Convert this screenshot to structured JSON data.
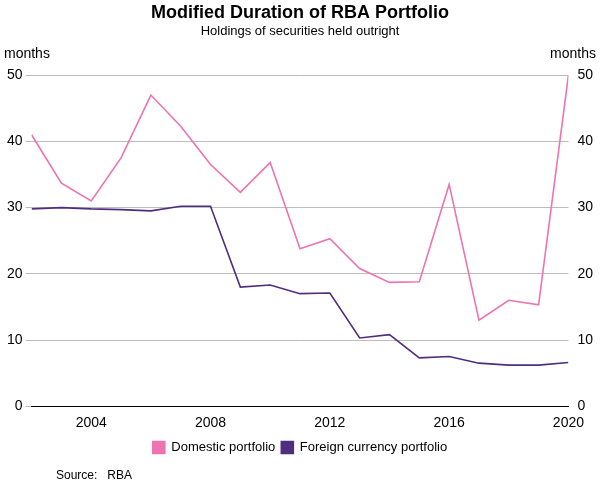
{
  "chart_data": {
    "type": "line",
    "title": "Modified Duration of RBA Portfolio",
    "subtitle": "Holdings of securities held outright",
    "ylabel": "months",
    "y2label": "months",
    "source": "Source:   RBA",
    "x": [
      2002,
      2003,
      2004,
      2005,
      2006,
      2007,
      2008,
      2009,
      2010,
      2011,
      2012,
      2013,
      2014,
      2015,
      2016,
      2017,
      2018,
      2019,
      2020
    ],
    "series": [
      {
        "name": "Domestic portfolio",
        "color": "#ee73b1",
        "values": [
          41,
          33.7,
          31,
          37.5,
          47,
          42.3,
          36.5,
          32.3,
          36.8,
          23.8,
          25.3,
          20.8,
          18.7,
          18.8,
          33.5,
          13,
          16,
          15.3,
          50
        ]
      },
      {
        "name": "Foreign currency portfolio",
        "color": "#4f2d7f",
        "values": [
          29.8,
          30,
          29.8,
          29.7,
          29.5,
          30.2,
          30.2,
          18,
          18.3,
          17,
          17.1,
          10.3,
          10.8,
          7.3,
          7.5,
          6.5,
          6.2,
          6.2,
          6.6
        ]
      }
    ],
    "xlim": [
      2002,
      2020
    ],
    "xticks": [
      2004,
      2008,
      2012,
      2016,
      2020
    ],
    "ylim": [
      0,
      50
    ],
    "yticks": [
      0,
      10,
      20,
      30,
      40,
      50
    ],
    "y2lim": [
      0,
      50
    ],
    "y2ticks": [
      0,
      10,
      20,
      30,
      40,
      50
    ],
    "grid": true,
    "legend": "bottom"
  }
}
